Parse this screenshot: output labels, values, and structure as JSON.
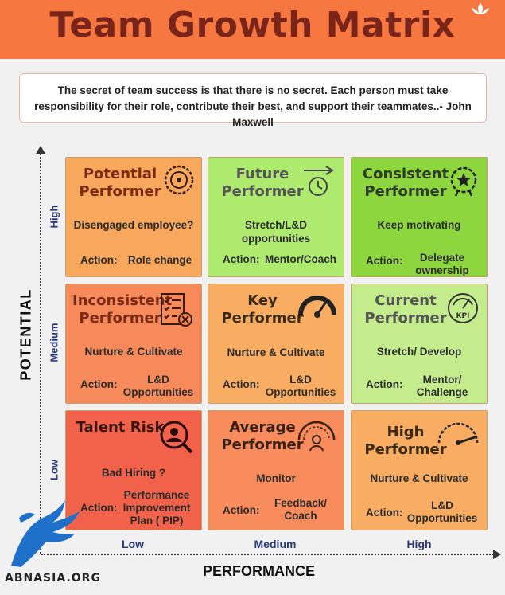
{
  "header": {
    "title": "Team Growth Matrix"
  },
  "quote": {
    "text": "The secret of team success is that there is no secret. Each person must take responsibility for their role, contribute their best, and support their teammates..- John Maxwell"
  },
  "axes": {
    "y_label": "POTENTIAL",
    "x_label": "PERFORMANCE",
    "y_ticks": [
      "High",
      "Medium",
      "Low"
    ],
    "x_ticks": [
      "Low",
      "Medium",
      "High"
    ]
  },
  "action_label": "Action:",
  "cells": [
    {
      "title": "Potential Performer",
      "desc": "Disengaged employee?",
      "action": "Role change",
      "icon": "gauge-target-icon",
      "bg": "#f7a85c",
      "title_color": "#7a2a14"
    },
    {
      "title": "Future Performer",
      "desc": "Stretch/L&D opportunities",
      "action": "Mentor/Coach",
      "icon": "clock-arrow-icon",
      "bg": "#aeea6e",
      "title_color": "#555555"
    },
    {
      "title": "Consistent Performer",
      "desc": "Keep motivating",
      "action": "Delegate ownership",
      "icon": "award-star-icon",
      "bg": "#8ed63e",
      "title_color": "#2e3b2a"
    },
    {
      "title": "Inconsistent Performer",
      "desc": "Nurture & Cultivate",
      "action": "L&D Opportunities",
      "icon": "checklist-cross-icon",
      "bg": "#f78a5a",
      "title_color": "#7a2a14"
    },
    {
      "title": "Key Performer",
      "desc": "Nurture & Cultivate",
      "action": "L&D Opportunities",
      "icon": "speedometer-icon",
      "bg": "#f8ad62",
      "title_color": "#3a2a14"
    },
    {
      "title": "Current Performer",
      "desc": "Stretch/ Develop",
      "action": "Mentor/ Challenge",
      "icon": "kpi-gauge-icon",
      "bg": "#c4ec8c",
      "title_color": "#555555"
    },
    {
      "title": "Talent Risk",
      "desc": "Bad Hiring ?",
      "action": "Performance Improvement Plan ( PIP)",
      "icon": "person-search-icon",
      "bg": "#f2624a",
      "title_color": "#3a1410"
    },
    {
      "title": "Average Performer",
      "desc": "Monitor",
      "action": "Feedback/ Coach",
      "icon": "meter-person-icon",
      "bg": "#f88c5c",
      "title_color": "#3a2014"
    },
    {
      "title": "High Performer",
      "desc": "Nurture & Cultivate",
      "action": "L&D Opportunities",
      "icon": "speedometer-high-icon",
      "bg": "#f8ad62",
      "title_color": "#3a2a14"
    }
  ],
  "brand": {
    "text": "ABNASIA.ORG"
  }
}
